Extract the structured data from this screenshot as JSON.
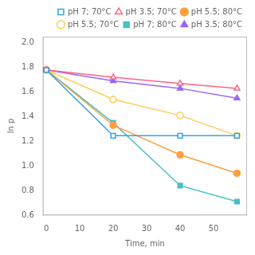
{
  "chart_data": {
    "type": "line",
    "xlabel": "Time, min",
    "ylabel": "ln p",
    "x": [
      0,
      20,
      40,
      57
    ],
    "series": [
      {
        "name": "pH 7; 70°C",
        "values": [
          1.78,
          1.245,
          1.245,
          1.245
        ],
        "marker": "square_open"
      },
      {
        "name": "pH 3.5; 70°C",
        "values": [
          1.78,
          1.72,
          1.67,
          1.63
        ],
        "marker": "triangle_open"
      },
      {
        "name": "pH 5.5; 80°C",
        "values": [
          1.78,
          1.33,
          1.09,
          0.94
        ],
        "marker": "circle_filled"
      },
      {
        "name": "pH 5.5; 70°C",
        "values": [
          1.78,
          1.54,
          1.41,
          1.245
        ],
        "marker": "circle_open"
      },
      {
        "name": "pH 7; 80°C",
        "values": [
          1.78,
          1.35,
          0.84,
          0.71
        ],
        "marker": "square_filled"
      },
      {
        "name": "pH 3.5; 80°C",
        "values": [
          1.78,
          1.69,
          1.63,
          1.55
        ],
        "marker": "triangle_filled"
      }
    ],
    "xlim": [
      -1,
      60
    ],
    "ylim": [
      0.6,
      2.05
    ],
    "xticks": [
      0,
      10,
      20,
      30,
      40,
      50
    ],
    "yticks": [
      0.6,
      0.8,
      {
        "value": 1,
        "label": "1.0"
      },
      1.2,
      1.4,
      1.6,
      1.8,
      {
        "value": 2,
        "label": "2.0"
      }
    ],
    "grid": false,
    "legend": "upper right"
  }
}
